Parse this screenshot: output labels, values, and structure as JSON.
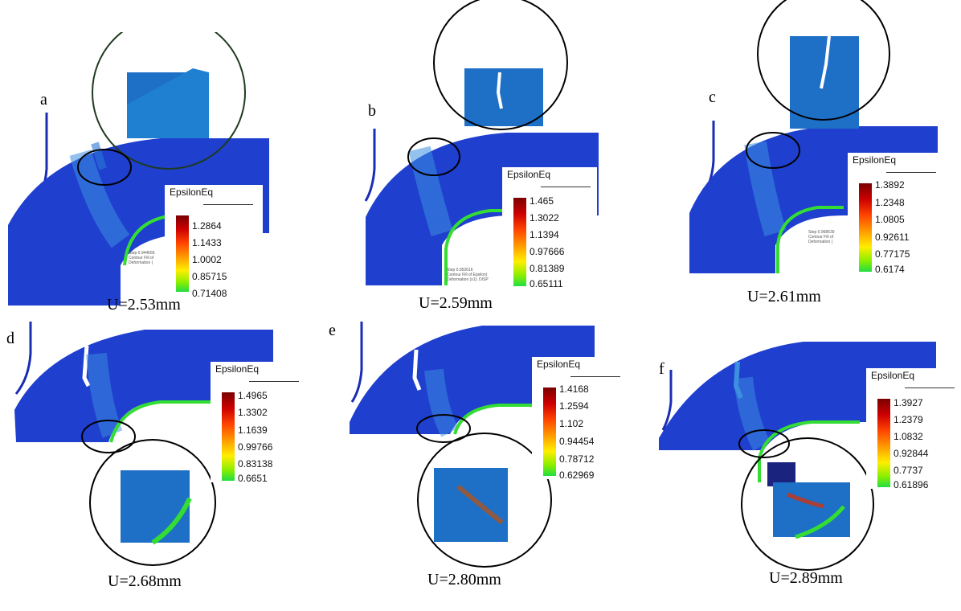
{
  "legend_title": "EpsilonEq",
  "panels": [
    {
      "label": "a",
      "caption": "U=2.53mm",
      "legend": [
        "1.2864",
        "1.1433",
        "1.0002",
        "0.85715",
        "0.71408"
      ]
    },
    {
      "label": "b",
      "caption": "U=2.59mm",
      "legend": [
        "1.465",
        "1.3022",
        "1.1394",
        "0.97666",
        "0.81389",
        "0.65111"
      ]
    },
    {
      "label": "c",
      "caption": "U=2.61mm",
      "legend": [
        "1.3892",
        "1.2348",
        "1.0805",
        "0.92611",
        "0.77175",
        "0.6174"
      ]
    },
    {
      "label": "d",
      "caption": "U=2.68mm",
      "legend": [
        "1.4965",
        "1.3302",
        "1.1639",
        "0.99766",
        "0.83138",
        "0.6651"
      ]
    },
    {
      "label": "e",
      "caption": "U=2.80mm",
      "legend": [
        "1.4168",
        "1.2594",
        "1.102",
        "0.94454",
        "0.78712",
        "0.62969"
      ]
    },
    {
      "label": "f",
      "caption": "U=2.89mm",
      "legend": [
        "1.3927",
        "1.2379",
        "1.0832",
        "0.92844",
        "0.7737",
        "0.61896"
      ]
    }
  ],
  "colors": {
    "mesh_blue": "#1f3fcf",
    "mesh_dark": "#0b1f9a",
    "die_edge": "#1a2db5",
    "punch_green": "#33dd33",
    "legend_colors": [
      "#7a0000",
      "#cc0000",
      "#ff4400",
      "#ff9900",
      "#ffee00",
      "#88ee00",
      "#22dd44"
    ]
  }
}
